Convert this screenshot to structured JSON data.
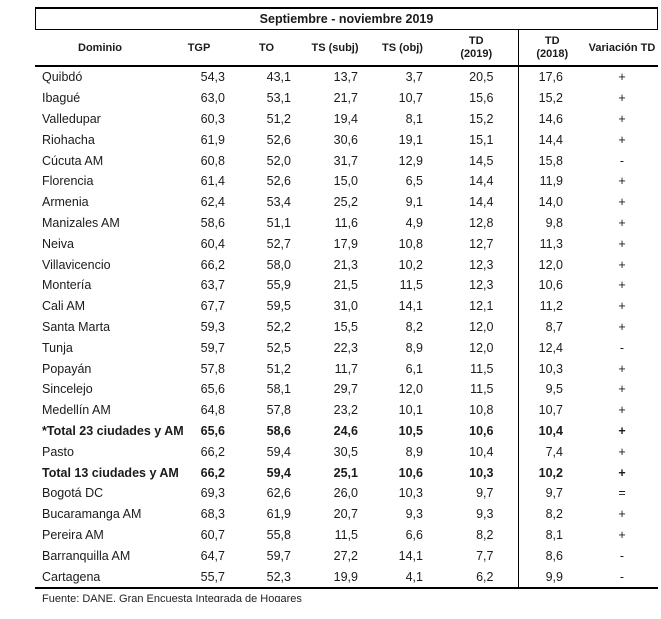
{
  "page": {
    "title": "Septiembre - noviembre 2019",
    "footer": "Fuente: DANE, Gran Encuesta Integrada de Hogares"
  },
  "colors": {
    "background": "#ffffff",
    "text": "#1b1b1b",
    "border": "#000000"
  },
  "table": {
    "headers": {
      "dominio": "Dominio",
      "tgp": "TGP",
      "to": "TO",
      "ts_subj": "TS (subj)",
      "ts_obj": "TS (obj)",
      "td2019_line1": "TD",
      "td2019_line2": "(2019)",
      "td2018_line1": "TD",
      "td2018_line2": "(2018)",
      "variacion_td": "Variación TD"
    },
    "rows": [
      {
        "bold": false,
        "cells": [
          "Quibdó",
          "54,3",
          "43,1",
          "13,7",
          "3,7",
          "20,5",
          "17,6",
          "+"
        ]
      },
      {
        "bold": false,
        "cells": [
          "Ibagué",
          "63,0",
          "53,1",
          "21,7",
          "10,7",
          "15,6",
          "15,2",
          "+"
        ]
      },
      {
        "bold": false,
        "cells": [
          "Valledupar",
          "60,3",
          "51,2",
          "19,4",
          "8,1",
          "15,2",
          "14,6",
          "+"
        ]
      },
      {
        "bold": false,
        "cells": [
          "Riohacha",
          "61,9",
          "52,6",
          "30,6",
          "19,1",
          "15,1",
          "14,4",
          "+"
        ]
      },
      {
        "bold": false,
        "cells": [
          "Cúcuta AM",
          "60,8",
          "52,0",
          "31,7",
          "12,9",
          "14,5",
          "15,8",
          "-"
        ]
      },
      {
        "bold": false,
        "cells": [
          "Florencia",
          "61,4",
          "52,6",
          "15,0",
          "6,5",
          "14,4",
          "11,9",
          "+"
        ]
      },
      {
        "bold": false,
        "cells": [
          "Armenia",
          "62,4",
          "53,4",
          "25,2",
          "9,1",
          "14,4",
          "14,0",
          "+"
        ]
      },
      {
        "bold": false,
        "cells": [
          "Manizales AM",
          "58,6",
          "51,1",
          "11,6",
          "4,9",
          "12,8",
          "9,8",
          "+"
        ]
      },
      {
        "bold": false,
        "cells": [
          "Neiva",
          "60,4",
          "52,7",
          "17,9",
          "10,8",
          "12,7",
          "11,3",
          "+"
        ]
      },
      {
        "bold": false,
        "cells": [
          "Villavicencio",
          "66,2",
          "58,0",
          "21,3",
          "10,2",
          "12,3",
          "12,0",
          "+"
        ]
      },
      {
        "bold": false,
        "cells": [
          "Montería",
          "63,7",
          "55,9",
          "21,5",
          "11,5",
          "12,3",
          "10,6",
          "+"
        ]
      },
      {
        "bold": false,
        "cells": [
          "Cali AM",
          "67,7",
          "59,5",
          "31,0",
          "14,1",
          "12,1",
          "11,2",
          "+"
        ]
      },
      {
        "bold": false,
        "cells": [
          "Santa Marta",
          "59,3",
          "52,2",
          "15,5",
          "8,2",
          "12,0",
          "8,7",
          "+"
        ]
      },
      {
        "bold": false,
        "cells": [
          "Tunja",
          "59,7",
          "52,5",
          "22,3",
          "8,9",
          "12,0",
          "12,4",
          "-"
        ]
      },
      {
        "bold": false,
        "cells": [
          "Popayán",
          "57,8",
          "51,2",
          "11,7",
          "6,1",
          "11,5",
          "10,3",
          "+"
        ]
      },
      {
        "bold": false,
        "cells": [
          "Sincelejo",
          "65,6",
          "58,1",
          "29,7",
          "12,0",
          "11,5",
          "9,5",
          "+"
        ]
      },
      {
        "bold": false,
        "cells": [
          "Medellín AM",
          "64,8",
          "57,8",
          "23,2",
          "10,1",
          "10,8",
          "10,7",
          "+"
        ]
      },
      {
        "bold": true,
        "cells": [
          "*Total 23 ciudades y AM",
          "65,6",
          "58,6",
          "24,6",
          "10,5",
          "10,6",
          "10,4",
          "+"
        ]
      },
      {
        "bold": false,
        "cells": [
          "Pasto",
          "66,2",
          "59,4",
          "30,5",
          "8,9",
          "10,4",
          "7,4",
          "+"
        ]
      },
      {
        "bold": true,
        "cells": [
          "Total 13 ciudades y AM",
          "66,2",
          "59,4",
          "25,1",
          "10,6",
          "10,3",
          "10,2",
          "+"
        ]
      },
      {
        "bold": false,
        "cells": [
          "Bogotá DC",
          "69,3",
          "62,6",
          "26,0",
          "10,3",
          "9,7",
          "9,7",
          "="
        ]
      },
      {
        "bold": false,
        "cells": [
          "Bucaramanga AM",
          "68,3",
          "61,9",
          "20,7",
          "9,3",
          "9,3",
          "8,2",
          "+"
        ]
      },
      {
        "bold": false,
        "cells": [
          "Pereira AM",
          "60,7",
          "55,8",
          "11,5",
          "6,6",
          "8,2",
          "8,1",
          "+"
        ]
      },
      {
        "bold": false,
        "cells": [
          "Barranquilla AM",
          "64,7",
          "59,7",
          "27,2",
          "14,1",
          "7,7",
          "8,6",
          "-"
        ]
      },
      {
        "bold": false,
        "cells": [
          "Cartagena",
          "55,7",
          "52,3",
          "19,9",
          "4,1",
          "6,2",
          "9,9",
          "-"
        ]
      }
    ]
  }
}
